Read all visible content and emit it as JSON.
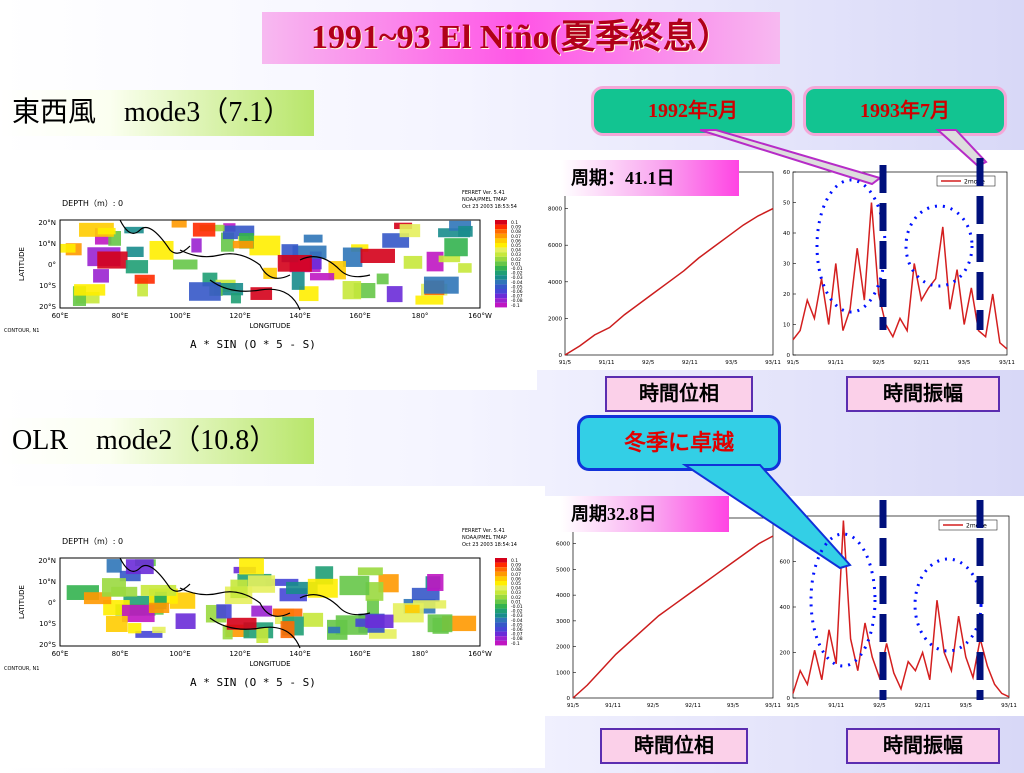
{
  "title": "1991~93 El Niño(夏季終息）",
  "wind_label": "東西風　mode3（7.1）",
  "olr_label": "OLR　mode2（10.8）",
  "btn_1992": "1992年5月",
  "btn_1993": "1993年7月",
  "period_top": "周期：41.1日",
  "period_bottom": "周期32.8日",
  "phase_label_top": "時間位相",
  "amp_label_top": "時間振幅",
  "phase_label_bottom": "時間位相",
  "amp_label_bottom": "時間振幅",
  "winter_label": "冬季に卓越",
  "map_top": {
    "header": "DEPTH（m）: 0",
    "meta": [
      "FERRET Ver. 5.41",
      "NOAA/PMEL TMAP",
      "Oct 23 2003 18:53:54"
    ],
    "lat_ticks": [
      "20°N",
      "10°N",
      "0°",
      "10°S",
      "20°S"
    ],
    "lon_ticks": [
      "60°E",
      "80°E",
      "100°E",
      "120°E",
      "140°E",
      "160°E",
      "180°",
      "160°W"
    ],
    "ylabel": "LATITUDE",
    "xlabel": "LONGITUDE",
    "contour": "CONTOUR, N1",
    "formula": "A * SIN (O * 5 - S)"
  },
  "map_bottom": {
    "header": "DEPTH（m）: 0",
    "meta": [
      "FERRET Ver. 5.41",
      "NOAA/PMEL TMAP",
      "Oct 23 2003 18:54:14"
    ],
    "lat_ticks": [
      "20°N",
      "10°N",
      "0°",
      "10°S",
      "20°S"
    ],
    "lon_ticks": [
      "60°E",
      "80°E",
      "100°E",
      "120°E",
      "140°E",
      "160°E",
      "180°",
      "160°W"
    ],
    "ylabel": "LATITUDE",
    "xlabel": "LONGITUDE",
    "contour": "CONTOUR, N1",
    "formula": "A * SIN (O * 5 - S)"
  },
  "legend_values": [
    "0.1",
    "0.09",
    "0.08",
    "0.07",
    "0.06",
    "0.05",
    "0.04",
    "0.03",
    "0.02",
    "0.01",
    "-0.01",
    "-0.02",
    "-0.03",
    "-0.04",
    "-0.05",
    "-0.06",
    "-0.07",
    "-0.08",
    "-0.1"
  ],
  "legend_colors": [
    "#d4001a",
    "#ff2a00",
    "#ff6a00",
    "#ff9900",
    "#ffcc00",
    "#ffee00",
    "#e6f05c",
    "#c7e83b",
    "#9ad93f",
    "#66c748",
    "#33b24f",
    "#1f9f74",
    "#188c8c",
    "#2f75b8",
    "#3558c8",
    "#4646d6",
    "#6a2bd8",
    "#9a22d0",
    "#bf16c2"
  ],
  "chart_data": [
    {
      "type": "line",
      "x_ticks": [
        "91/5",
        "91/11",
        "92/5",
        "92/11",
        "93/5",
        "93/11"
      ],
      "y_ticks": [
        0,
        2000,
        4000,
        6000,
        8000
      ],
      "ylim": [
        0,
        10000
      ],
      "series": [
        {
          "values": [
            0,
            500,
            1100,
            1500,
            2200,
            2800,
            3400,
            4000,
            4600,
            5300,
            5900,
            6500,
            7100,
            7600,
            8000
          ]
        }
      ]
    },
    {
      "type": "line",
      "x_ticks": [
        "91/5",
        "91/11",
        "92/5",
        "92/11",
        "93/5",
        "93/11"
      ],
      "y_ticks": [
        0,
        10,
        20,
        30,
        40,
        50,
        60
      ],
      "ylim": [
        0,
        60
      ],
      "series": [
        {
          "name": "2mode",
          "values": [
            5,
            8,
            18,
            12,
            25,
            10,
            30,
            8,
            15,
            35,
            18,
            50,
            20,
            10,
            6,
            12,
            8,
            30,
            18,
            22,
            25,
            42,
            15,
            28,
            10,
            22,
            8,
            6,
            20,
            4,
            2
          ]
        }
      ]
    },
    {
      "type": "line",
      "x_ticks": [
        "91/5",
        "91/11",
        "92/5",
        "92/11",
        "93/5",
        "93/11"
      ],
      "y_ticks": [
        0,
        1000,
        2000,
        3000,
        4000,
        5000,
        6000
      ],
      "ylim": [
        0,
        7000
      ],
      "series": [
        {
          "values": [
            0,
            500,
            1100,
            1700,
            2200,
            2700,
            3200,
            3600,
            4000,
            4400,
            4800,
            5200,
            5600,
            6000,
            6300
          ]
        }
      ]
    },
    {
      "type": "line",
      "x_ticks": [
        "91/5",
        "91/11",
        "92/5",
        "92/11",
        "93/5",
        "93/11"
      ],
      "y_ticks": [
        0,
        200,
        400,
        600,
        800
      ],
      "ylim": [
        0,
        800
      ],
      "series": [
        {
          "name": "2mode",
          "values": [
            20,
            120,
            60,
            210,
            80,
            300,
            150,
            780,
            260,
            120,
            330,
            180,
            90,
            240,
            110,
            40,
            160,
            120,
            200,
            80,
            430,
            200,
            120,
            360,
            180,
            90,
            260,
            140,
            60,
            20,
            5
          ]
        }
      ]
    }
  ]
}
